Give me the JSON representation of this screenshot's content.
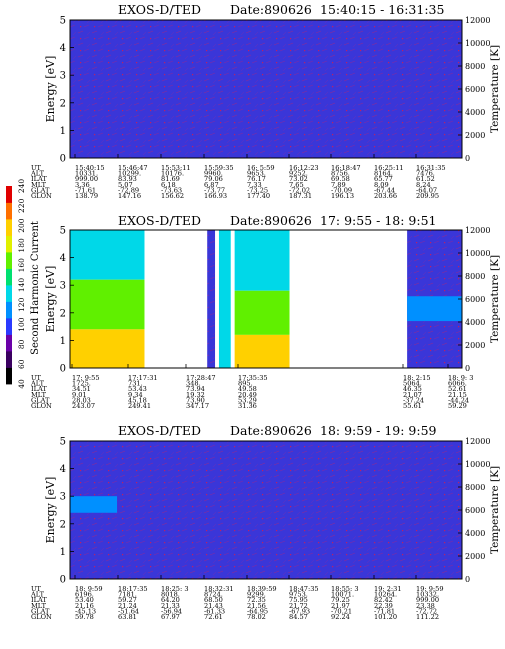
{
  "colorbar": {
    "label": "Second Harmonic Current",
    "ticks": [
      "40",
      "60",
      "80",
      "100",
      "120",
      "140",
      "160",
      "180",
      "200",
      "220",
      "240"
    ],
    "colors": [
      "#000000",
      "#3a0060",
      "#6a00a8",
      "#2a3aff",
      "#0090ff",
      "#00d8e8",
      "#00e070",
      "#60f000",
      "#e0f000",
      "#ffd000",
      "#ff7000",
      "#e00000"
    ]
  },
  "panels": [
    {
      "title_mission": "EXOS-D/TED",
      "title_date": "Date:890626",
      "title_range": "15:40:15 - 16:31:35",
      "ylabel_left": "Energy [eV]",
      "ylabel_right": "Temperature [K]",
      "left_ticks": [
        "0",
        "1",
        "2",
        "3",
        "4",
        "5"
      ],
      "right_ticks": [
        "0",
        "2000",
        "4000",
        "6000",
        "8000",
        "10000",
        "12000"
      ],
      "row_labels": [
        "UT",
        "ALT",
        "ILAT",
        "MLT",
        "GLAT",
        "GLON"
      ],
      "columns": [
        [
          "15:40:15",
          "10331.",
          "999.00",
          "3.36",
          "-71.61",
          "138.79"
        ],
        [
          "15:46:47",
          "10299.",
          "83.93",
          "5.07",
          "-72.89",
          "147.16"
        ],
        [
          "15:53:11",
          "10176.",
          "81.69",
          "6.18",
          "-73.63",
          "156.62"
        ],
        [
          "15:59:35",
          "9960.",
          "79.06",
          "6.87",
          "-73.77",
          "166.93"
        ],
        [
          "16: 5:59",
          "9653.",
          "76.17",
          "7.33",
          "-73.25",
          "177.40"
        ],
        [
          "16:12:23",
          "9252.",
          "73.02",
          "7.65",
          "-72.02",
          "187.31"
        ],
        [
          "16:18:47",
          "8756.",
          "69.58",
          "7.89",
          "-70.09",
          "196.13"
        ],
        [
          "16:25:11",
          "8164.",
          "65.77",
          "8.09",
          "-67.44",
          "203.66"
        ],
        [
          "16:31:35",
          "7476.",
          "61.52",
          "8.24",
          "-64.07",
          "209.95"
        ]
      ]
    },
    {
      "title_mission": "EXOS-D/TED",
      "title_date": "Date:890626",
      "title_range": "17: 9:55 - 18: 9:51",
      "ylabel_left": "Energy [eV]",
      "ylabel_right": "Temperature [K]",
      "left_ticks": [
        "0",
        "1",
        "2",
        "3",
        "4",
        "5"
      ],
      "right_ticks": [
        "0",
        "2000",
        "4000",
        "6000",
        "8000",
        "10000",
        "12000"
      ],
      "row_labels": [
        "UT",
        "ALT",
        "ILAT",
        "MLT",
        "GLAT",
        "GLON"
      ],
      "columns": [
        [
          "17: 9:55",
          "1725.",
          "34.51",
          "9.01",
          "28.03",
          "243.07"
        ],
        [
          "17:17:31",
          "731.",
          "53.43",
          "9.34",
          "45.18",
          "249.41"
        ],
        [
          "17:28:47",
          "348.",
          "73.94",
          "19.32",
          "73.90",
          "347.17"
        ],
        [
          "17:35:35",
          "895.",
          "49.58",
          "20.49",
          "53.29",
          "31.36"
        ],
        [
          "18: 2:15",
          "5064.",
          "46.35",
          "21.07",
          "-37.24",
          "55.61"
        ],
        [
          "18: 9: 3",
          "6066.",
          "52.61",
          "21.15",
          "-44.24",
          "59.29"
        ]
      ]
    },
    {
      "title_mission": "EXOS-D/TED",
      "title_date": "Date:890626",
      "title_range": "18: 9:59 - 19: 9:59",
      "ylabel_left": "Energy [eV]",
      "ylabel_right": "Temperature [K]",
      "left_ticks": [
        "0",
        "1",
        "2",
        "3",
        "4",
        "5"
      ],
      "right_ticks": [
        "0",
        "2000",
        "4000",
        "6000",
        "8000",
        "10000",
        "12000"
      ],
      "row_labels": [
        "UT",
        "ALT",
        "ILAT",
        "MLT",
        "GLAT",
        "GLON"
      ],
      "columns": [
        [
          "18: 9:59",
          "6196.",
          "53.40",
          "21.16",
          "-45.13",
          "59.78"
        ],
        [
          "18:17:35",
          "7181.",
          "59.27",
          "21.24",
          "-51.64",
          "63.81"
        ],
        [
          "18:25: 3",
          "8018.",
          "64.20",
          "21.33",
          "-56.94",
          "67.97"
        ],
        [
          "18:32:31",
          "8724.",
          "68.50",
          "21.43",
          "-61.33",
          "72.61"
        ],
        [
          "18:39:59",
          "9299.",
          "72.35",
          "21.56",
          "-64.95",
          "78.02"
        ],
        [
          "18:47:35",
          "9753.",
          "75.95",
          "21.72",
          "-67.93",
          "84.57"
        ],
        [
          "18:55: 3",
          "10071.",
          "79.25",
          "21.97",
          "-70.21",
          "92.24"
        ],
        [
          "19: 2:31",
          "10264.",
          "82.42",
          "22.39",
          "-71.81",
          "101.20"
        ],
        [
          "19: 9:59",
          "10332.",
          "999.00",
          "23.38",
          "-72.72",
          "111.22"
        ]
      ]
    }
  ],
  "chart_data": [
    {
      "type": "heatmap",
      "title": "EXOS-D/TED Date:890626 15:40:15 - 16:31:35",
      "ylabel": "Energy [eV]",
      "ylabel_right": "Temperature [K]",
      "ylim": [
        0,
        5
      ],
      "ylim_right": [
        0,
        12000
      ],
      "colorbar_label": "Second Harmonic Current",
      "colorbar_range": [
        40,
        240
      ],
      "x": [
        "15:40:15",
        "15:46:47",
        "15:53:11",
        "15:59:35",
        "16: 5:59",
        "16:12:23",
        "16:18:47",
        "16:25:11",
        "16:31:35"
      ],
      "regions": [
        {
          "x_start_frac": 0.0,
          "x_end_frac": 1.0,
          "e_min": 0,
          "e_max": 5,
          "level": 105
        }
      ]
    },
    {
      "type": "heatmap",
      "title": "EXOS-D/TED Date:890626 17: 9:55 - 18: 9:51",
      "ylabel": "Energy [eV]",
      "ylabel_right": "Temperature [K]",
      "ylim": [
        0,
        5
      ],
      "ylim_right": [
        0,
        12000
      ],
      "colorbar_label": "Second Harmonic Current",
      "colorbar_range": [
        40,
        240
      ],
      "x": [
        "17: 9:55",
        "17:17:31",
        "17:28:47",
        "17:35:35",
        "18: 2:15",
        "18: 9: 3"
      ],
      "regions": [
        {
          "x_start_frac": 0.0,
          "x_end_frac": 0.19,
          "e_min": 3.2,
          "e_max": 5.0,
          "level": 135
        },
        {
          "x_start_frac": 0.0,
          "x_end_frac": 0.19,
          "e_min": 1.4,
          "e_max": 3.2,
          "level": 160
        },
        {
          "x_start_frac": 0.0,
          "x_end_frac": 0.19,
          "e_min": 0.0,
          "e_max": 1.4,
          "level": 200
        },
        {
          "x_start_frac": 0.35,
          "x_end_frac": 0.37,
          "e_min": 0.0,
          "e_max": 5.0,
          "level": 100
        },
        {
          "x_start_frac": 0.38,
          "x_end_frac": 0.41,
          "e_min": 0.0,
          "e_max": 5.0,
          "level": 125
        },
        {
          "x_start_frac": 0.42,
          "x_end_frac": 0.56,
          "e_min": 2.8,
          "e_max": 5.0,
          "level": 130
        },
        {
          "x_start_frac": 0.42,
          "x_end_frac": 0.56,
          "e_min": 1.2,
          "e_max": 2.8,
          "level": 165
        },
        {
          "x_start_frac": 0.42,
          "x_end_frac": 0.56,
          "e_min": 0.0,
          "e_max": 1.2,
          "level": 200
        },
        {
          "x_start_frac": 0.86,
          "x_end_frac": 1.0,
          "e_min": 0.0,
          "e_max": 5.0,
          "level": 100
        },
        {
          "x_start_frac": 0.86,
          "x_end_frac": 1.0,
          "e_min": 1.7,
          "e_max": 2.6,
          "level": 120
        }
      ]
    },
    {
      "type": "heatmap",
      "title": "EXOS-D/TED Date:890626 18: 9:59 - 19: 9:59",
      "ylabel": "Energy [eV]",
      "ylabel_right": "Temperature [K]",
      "ylim": [
        0,
        5
      ],
      "ylim_right": [
        0,
        12000
      ],
      "colorbar_label": "Second Harmonic Current",
      "colorbar_range": [
        40,
        240
      ],
      "x": [
        "18: 9:59",
        "18:17:35",
        "18:25: 3",
        "18:32:31",
        "18:39:59",
        "18:47:35",
        "18:55: 3",
        "19: 2:31",
        "19: 9:59"
      ],
      "regions": [
        {
          "x_start_frac": 0.0,
          "x_end_frac": 1.0,
          "e_min": 0,
          "e_max": 5,
          "level": 105
        },
        {
          "x_start_frac": 0.0,
          "x_end_frac": 0.12,
          "e_min": 2.4,
          "e_max": 3.0,
          "level": 115
        }
      ]
    }
  ]
}
